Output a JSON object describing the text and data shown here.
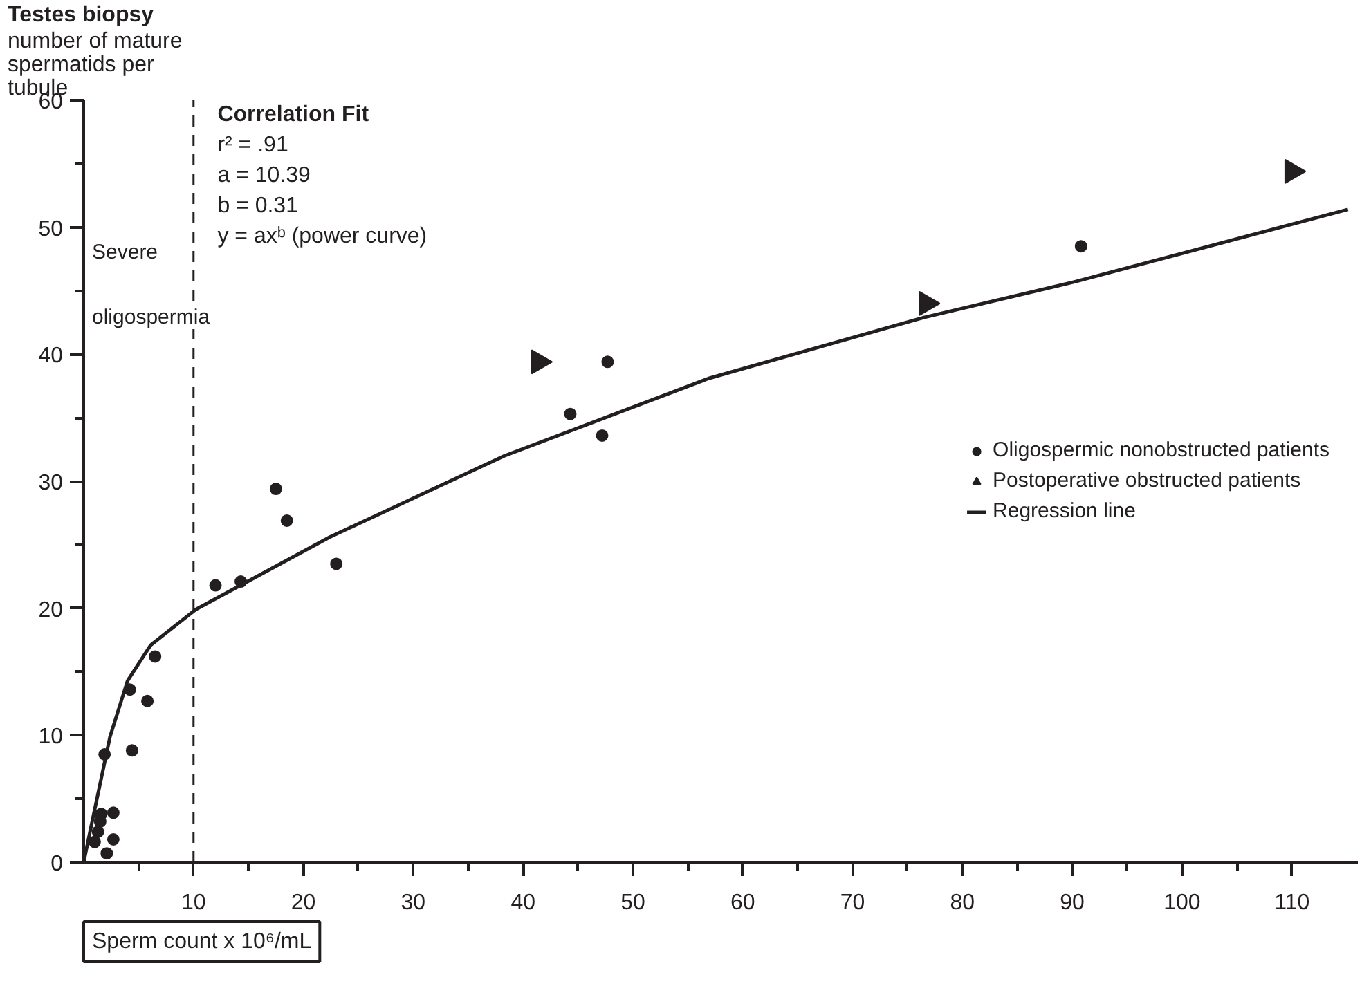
{
  "chart_data": {
    "type": "scatter",
    "title": "Testes biopsy",
    "ylabel": "number of mature spermatids per tubule",
    "xlabel": "Sperm count x 10⁶/mL",
    "annotations": [
      "Correlation Fit",
      "r² = .91",
      "a  = 10.39",
      "b  = 0.31",
      "y  = axᵇ (power curve)"
    ],
    "xlim": [
      0,
      116
    ],
    "ylim": [
      0,
      60
    ],
    "xticks": [
      {
        "value": 5,
        "label": null
      },
      10,
      {
        "value": 15,
        "label": null
      },
      20,
      {
        "value": 25,
        "label": null
      },
      30,
      {
        "value": 35,
        "label": null
      },
      40,
      {
        "value": 45,
        "label": null
      },
      50,
      {
        "value": 55,
        "label": null
      },
      60,
      {
        "value": 65,
        "label": null
      },
      70,
      {
        "value": 75,
        "label": null
      },
      80,
      {
        "value": 85,
        "label": null
      },
      90,
      {
        "value": 95,
        "label": null
      },
      100,
      {
        "value": 105,
        "label": null
      },
      110
    ],
    "yticks": [
      0,
      {
        "value": 5,
        "label": null
      },
      10,
      {
        "value": 15,
        "label": null
      },
      20,
      {
        "value": 25,
        "label": null
      },
      30,
      {
        "value": 35,
        "label": null
      },
      40,
      {
        "value": 45,
        "label": null
      },
      50,
      {
        "value": 55,
        "label": null
      },
      60
    ],
    "ref_lines": [
      {
        "axis": "x",
        "value": 10,
        "label": "Severe oligospermia",
        "color": "#231f20",
        "line_style": "dashed"
      }
    ],
    "grid": false,
    "legend": "right",
    "series": [
      {
        "name": "Oligospermic nonobstructed patients",
        "marker": "circle",
        "color": "#231f20",
        "x": [
          12.0,
          14.3,
          6.5,
          4.2,
          5.8,
          1.9,
          4.4,
          2.7,
          1.6,
          1.5,
          1.3,
          1.0,
          2.7,
          2.1,
          17.5,
          18.5,
          23.0,
          44.3,
          47.2,
          47.7,
          90.8
        ],
        "values": [
          21.8,
          22.1,
          16.2,
          13.6,
          12.7,
          8.5,
          8.8,
          3.9,
          3.8,
          3.2,
          2.4,
          1.6,
          1.8,
          0.7,
          29.4,
          26.9,
          23.5,
          35.3,
          33.6,
          39.4,
          48.5
        ]
      },
      {
        "name": "Postoperative obstructed patients",
        "type": "scatter",
        "marker": "triangle",
        "color": "#231f20",
        "x": [
          41.4,
          76.7,
          110.0
        ],
        "values": [
          39.4,
          44.0,
          54.4
        ]
      },
      {
        "name": "Regression line",
        "type": "line",
        "marker": "none",
        "line_style": "solid",
        "color": "#231f20",
        "x": [
          0,
          0.6,
          2.4,
          4.0,
          6.1,
          10.2,
          22.4,
          38.3,
          56.9,
          76.5,
          90.2,
          115.1
        ],
        "values": [
          0,
          2.5,
          9.9,
          14.3,
          17.1,
          19.9,
          25.6,
          32.0,
          38.1,
          42.9,
          45.7,
          51.4
        ]
      }
    ]
  }
}
